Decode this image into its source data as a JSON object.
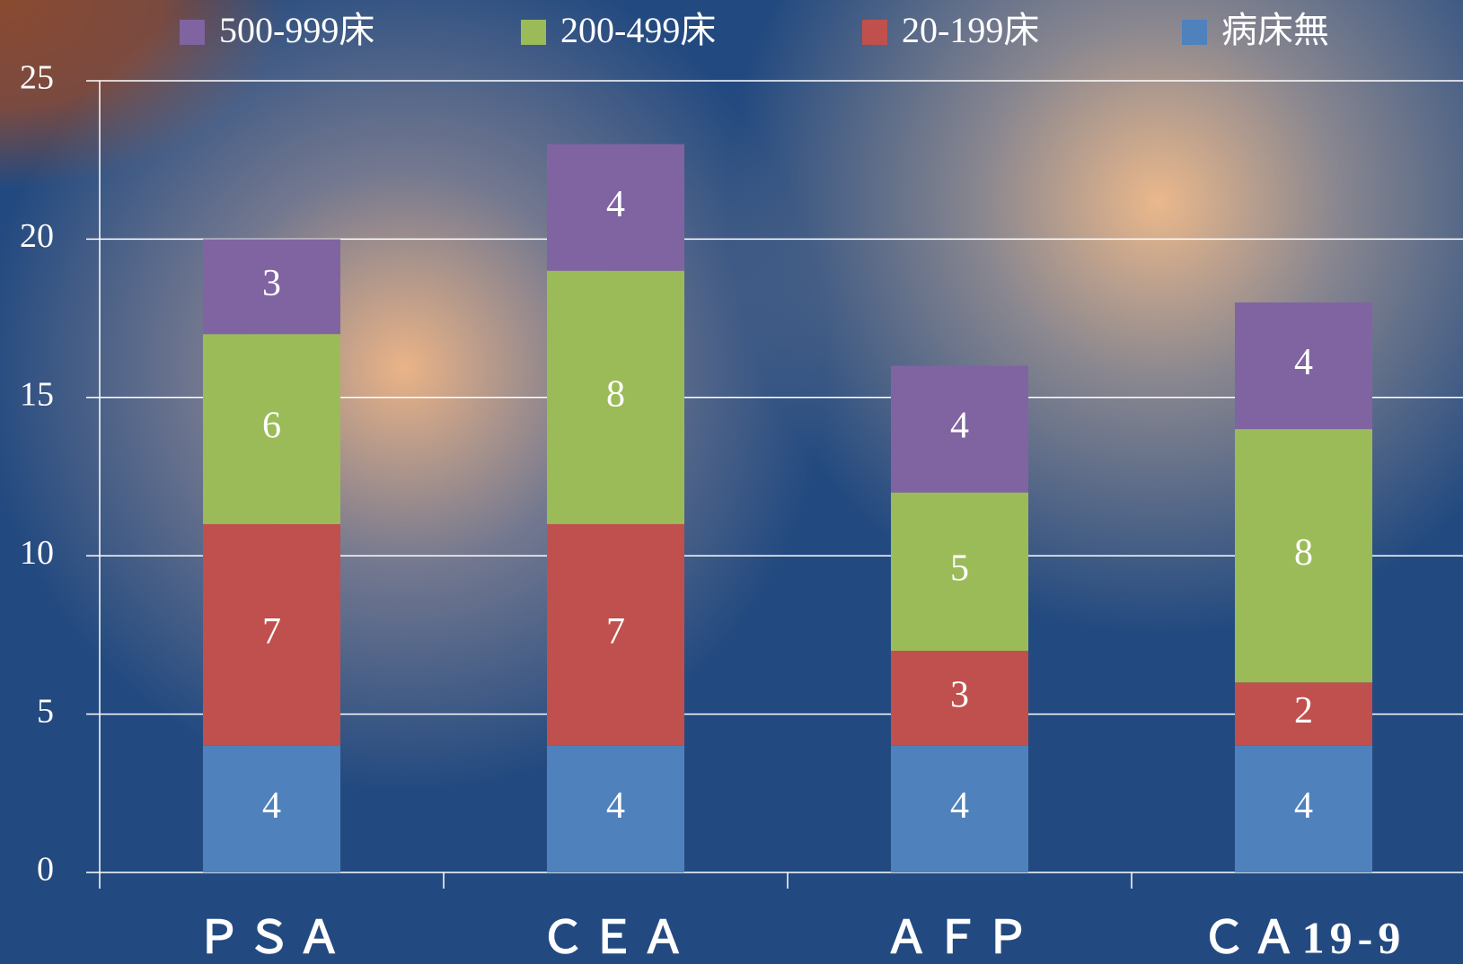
{
  "chart_data": {
    "type": "stacked_bar",
    "categories": [
      "ＰＳＡ",
      "ＣＥＡ",
      "ＡＦＰ",
      "ＣＡ19-9"
    ],
    "series": [
      {
        "name": "病床無",
        "color": "#4f81bd",
        "values": [
          4,
          4,
          4,
          4
        ]
      },
      {
        "name": "20-199床",
        "color": "#c0504d",
        "values": [
          7,
          7,
          3,
          2
        ]
      },
      {
        "name": "200-499床",
        "color": "#9bbb59",
        "values": [
          6,
          8,
          5,
          8
        ]
      },
      {
        "name": "500-999床",
        "color": "#8064a2",
        "values": [
          3,
          4,
          4,
          4
        ]
      }
    ],
    "ylim": [
      0,
      25
    ],
    "yticks": [
      0,
      5,
      10,
      15,
      20,
      25
    ],
    "grid": true,
    "legend": "top"
  }
}
